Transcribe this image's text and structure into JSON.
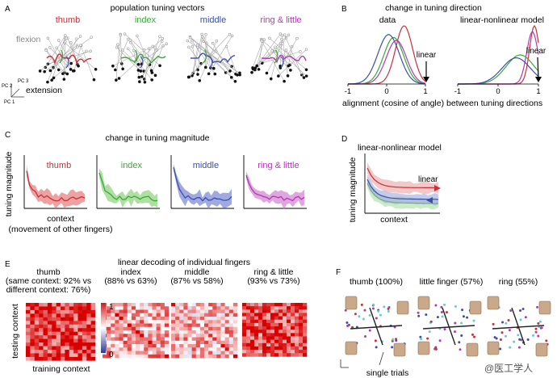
{
  "panels": {
    "A": {
      "letter": "A",
      "title": "population tuning vectors",
      "fingers": [
        {
          "label": "thumb",
          "color": "#c8303a"
        },
        {
          "label": "index",
          "color": "#3aa83a"
        },
        {
          "label": "middle",
          "color": "#3b4fa8"
        },
        {
          "label": "ring & little",
          "color": "#b03ab0"
        }
      ],
      "flexion_label": "flexion",
      "extension_label": "extension",
      "pc_labels": [
        "PC 1",
        "PC 2",
        "PC 3"
      ]
    },
    "B": {
      "letter": "B",
      "title": "change in tuning direction",
      "left_title": "data",
      "right_title": "linear-nonlinear model",
      "linear_label": "linear",
      "xticks_left": [
        "-1",
        "0",
        "1"
      ],
      "xticks_right": [
        "-1",
        "0",
        "1"
      ],
      "xlabel": "alignment (cosine of angle) between tuning directions"
    },
    "C": {
      "letter": "C",
      "title": "change in tuning magnitude",
      "ylabel": "tuning magnitude",
      "xlabel_line1": "context",
      "xlabel_line2": "(movement of other fingers)",
      "fingers": [
        {
          "label": "thumb",
          "color": "#c8303a",
          "band": "#e88a8a"
        },
        {
          "label": "index",
          "color": "#3aa83a",
          "band": "#9ad88a"
        },
        {
          "label": "middle",
          "color": "#3b4fa8",
          "band": "#8a95d8"
        },
        {
          "label": "ring & little",
          "color": "#b03ab0",
          "band": "#d890d8"
        }
      ]
    },
    "D": {
      "letter": "D",
      "title": "linear-nonlinear model",
      "ylabel": "tuning magnitude",
      "xlabel": "context",
      "linear_label": "linear"
    },
    "E": {
      "letter": "E",
      "title": "linear decoding of individual fingers",
      "columns": [
        {
          "lines": [
            "thumb",
            "(same context: 92% vs",
            "different context: 76%)"
          ]
        },
        {
          "lines": [
            "index",
            "(88% vs 63%)"
          ]
        },
        {
          "lines": [
            "middle",
            "(87% vs 58%)"
          ]
        },
        {
          "lines": [
            "ring & little",
            "(93% vs 73%)"
          ]
        }
      ],
      "ylabel": "testing context",
      "xlabel": "training context",
      "colorbar": [
        "1",
        "0"
      ]
    },
    "F": {
      "letter": "F",
      "titles": [
        "thumb (100%)",
        "little finger (57%)",
        "ring (55%)"
      ],
      "note": "single trials",
      "watermark": "@医工学人"
    }
  }
}
